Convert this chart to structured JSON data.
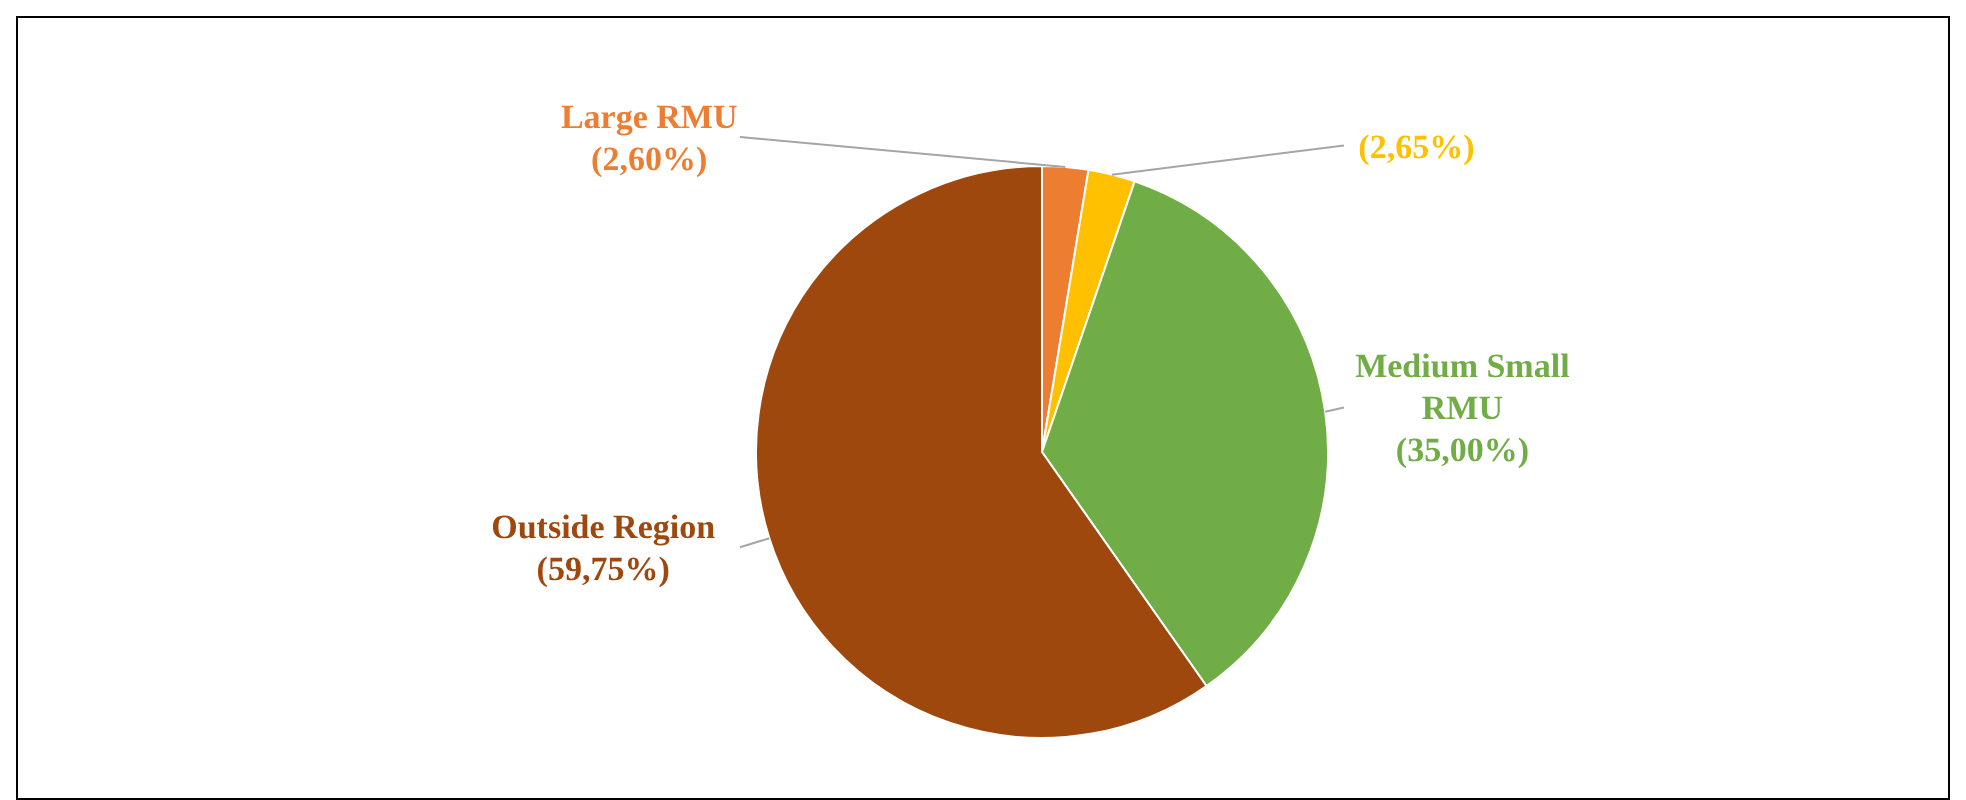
{
  "chart_data": {
    "type": "pie",
    "categories": [
      "Large RMU",
      null,
      "Medium Small RMU",
      "Outside Region"
    ],
    "values": [
      2.6,
      2.65,
      35,
      59.75
    ],
    "colors": [
      "#ed7d31",
      "#ffc000",
      "#70ad47",
      "#9e480e"
    ],
    "value_labels": [
      "(2,60%)",
      "(2,65%)",
      "(35,00%)",
      "(59,75%)"
    ],
    "legend": false
  }
}
